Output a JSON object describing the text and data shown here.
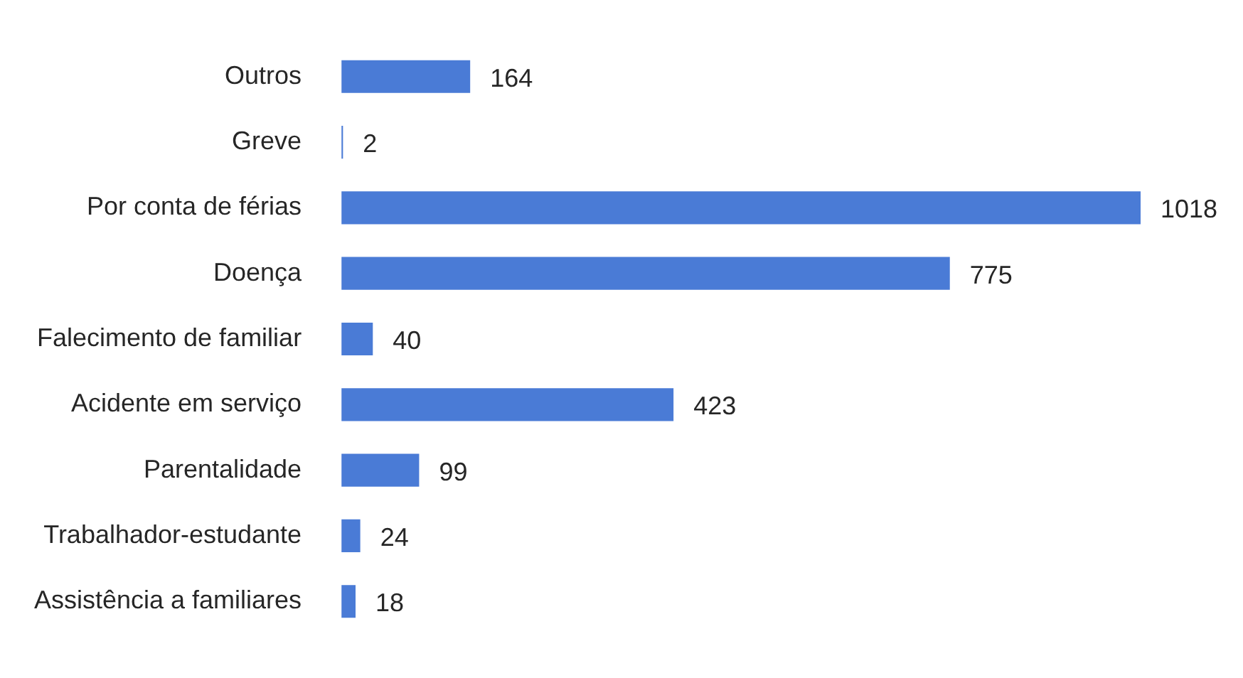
{
  "chart_data": {
    "type": "bar",
    "orientation": "horizontal",
    "categories": [
      "Outros",
      "Greve",
      "Por conta de férias",
      "Doença",
      "Falecimento de familiar",
      "Acidente em serviço",
      "Parentalidade",
      "Trabalhador-estudante",
      "Assistência a familiares"
    ],
    "values": [
      164,
      2,
      1018,
      775,
      40,
      423,
      99,
      24,
      18
    ],
    "color": "#4a7bd6",
    "data_labels": true,
    "legend": false
  }
}
